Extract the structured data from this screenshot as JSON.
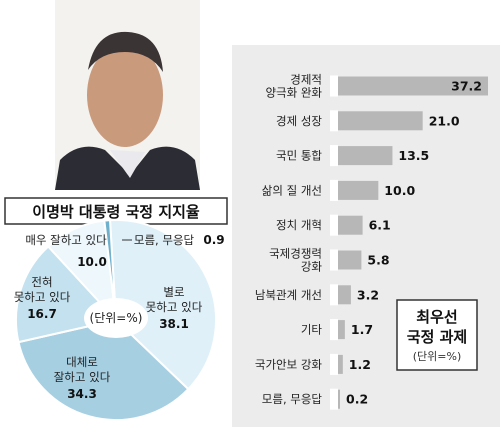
{
  "chart_data": [
    {
      "type": "pie",
      "title": "이명박 대통령 국정 지지율",
      "center_label": "(단위=%)",
      "categories": [
        "별로 못하고 있다",
        "대체로 잘하고 있다",
        "전혀 못하고 있다",
        "매우 잘하고 있다",
        "모름, 무응답"
      ],
      "label_lines": [
        [
          "별로",
          "못하고 있다"
        ],
        [
          "대체로",
          "잘하고 있다"
        ],
        [
          "전혀",
          "못하고 있다"
        ],
        [
          "매우 잘하고 있다"
        ],
        [
          "모름, 무응답"
        ]
      ],
      "values": [
        38.1,
        34.3,
        16.7,
        10.0,
        0.9
      ],
      "value_labels": [
        "38.1",
        "34.3",
        "16.7",
        "10.0",
        "0.9"
      ],
      "colors": [
        "#dff0f8",
        "#a6cfe2",
        "#c3e1ee",
        "#eef7fb",
        "#6fb1cc"
      ]
    },
    {
      "type": "bar",
      "orientation": "horizontal",
      "title": "최우선 국정 과제",
      "title_lines": [
        "최우선",
        "국정 과제"
      ],
      "unit_label": "(단위=%)",
      "categories": [
        "경제적 양극화 완화",
        "경제 성장",
        "국민 통합",
        "삶의 질 개선",
        "정치 개혁",
        "국제경쟁력 강화",
        "남북관계 개선",
        "기타",
        "국가안보 강화",
        "모름, 무응답"
      ],
      "label_lines": [
        [
          "경제적",
          "양극화 완화"
        ],
        [
          "경제 성장"
        ],
        [
          "국민 통합"
        ],
        [
          "삶의 질 개선"
        ],
        [
          "정치 개혁"
        ],
        [
          "국제경쟁력",
          "강화"
        ],
        [
          "남북관계 개선"
        ],
        [
          "기타"
        ],
        [
          "국가안보 강화"
        ],
        [
          "모름, 무응답"
        ]
      ],
      "values": [
        37.2,
        21.0,
        13.5,
        10.0,
        6.1,
        5.8,
        3.2,
        1.7,
        1.2,
        0.2
      ],
      "value_labels": [
        "37.2",
        "21.0",
        "13.5",
        "10.0",
        "6.1",
        "5.8",
        "3.2",
        "1.7",
        "1.2",
        "0.2"
      ],
      "colors": {
        "bar": "#b7b7b7",
        "panel": "#ececec"
      }
    }
  ]
}
